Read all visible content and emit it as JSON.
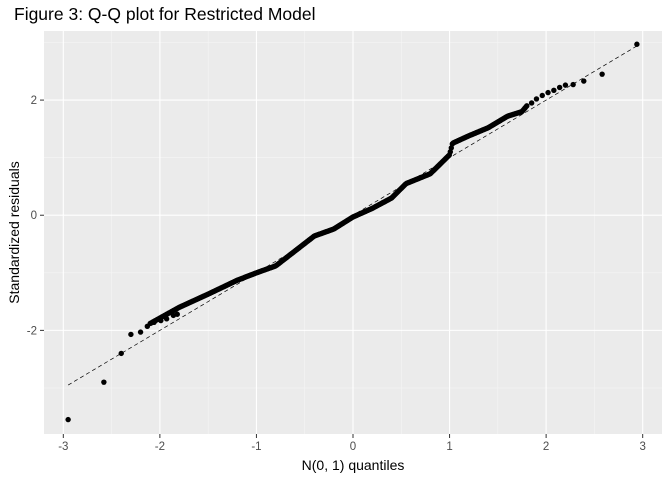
{
  "chart_data": {
    "type": "scatter",
    "title": "Figure 3: Q-Q plot for Restricted Model",
    "xlabel": "N(0, 1) quantiles",
    "ylabel": "Standardized residuals",
    "xlim": [
      -3.2,
      3.2
    ],
    "ylim": [
      -3.8,
      3.2
    ],
    "x_ticks": [
      -3,
      -2,
      -1,
      0,
      1,
      2,
      3
    ],
    "x_tick_labels": [
      "-3",
      "-2",
      "-1",
      "0",
      "1",
      "2",
      "3"
    ],
    "y_ticks": [
      -2,
      0,
      2
    ],
    "y_tick_labels": [
      "-2",
      "0",
      "2"
    ],
    "grid": true,
    "reference_line": {
      "style": "dashed",
      "slope": 1,
      "intercept": 0
    },
    "curve_knots": [
      [
        -2.1,
        -1.88
      ],
      [
        -1.8,
        -1.6
      ],
      [
        -1.5,
        -1.37
      ],
      [
        -1.2,
        -1.13
      ],
      [
        -1.0,
        -1.0
      ],
      [
        -0.8,
        -0.88
      ],
      [
        -0.6,
        -0.62
      ],
      [
        -0.4,
        -0.36
      ],
      [
        -0.2,
        -0.24
      ],
      [
        0.0,
        -0.03
      ],
      [
        0.2,
        0.12
      ],
      [
        0.4,
        0.3
      ],
      [
        0.55,
        0.55
      ],
      [
        0.8,
        0.72
      ],
      [
        1.0,
        1.05
      ],
      [
        1.03,
        1.25
      ],
      [
        1.2,
        1.38
      ],
      [
        1.4,
        1.52
      ],
      [
        1.6,
        1.72
      ],
      [
        1.75,
        1.8
      ],
      [
        1.8,
        1.9
      ]
    ],
    "n_curve_points": 380,
    "points": [
      [
        -2.95,
        -3.55
      ],
      [
        -2.58,
        -2.9
      ],
      [
        -2.4,
        -2.4
      ],
      [
        -2.3,
        -2.07
      ],
      [
        -2.2,
        -2.03
      ],
      [
        -2.13,
        -1.93
      ],
      [
        -2.06,
        -1.86
      ],
      [
        -1.99,
        -1.83
      ],
      [
        -1.93,
        -1.8
      ],
      [
        -1.86,
        -1.74
      ],
      [
        -1.82,
        -1.72
      ],
      [
        1.85,
        1.95
      ],
      [
        1.9,
        2.02
      ],
      [
        1.96,
        2.08
      ],
      [
        2.02,
        2.13
      ],
      [
        2.08,
        2.17
      ],
      [
        2.14,
        2.22
      ],
      [
        2.2,
        2.26
      ],
      [
        2.28,
        2.27
      ],
      [
        2.39,
        2.33
      ],
      [
        2.58,
        2.45
      ],
      [
        2.94,
        2.97
      ]
    ],
    "colors": {
      "panel": "#ebebeb",
      "grid_major": "#ffffff",
      "grid_minor": "#f5f5f5",
      "points": "#000000",
      "tick": "#333333",
      "reference": "#000000"
    }
  }
}
